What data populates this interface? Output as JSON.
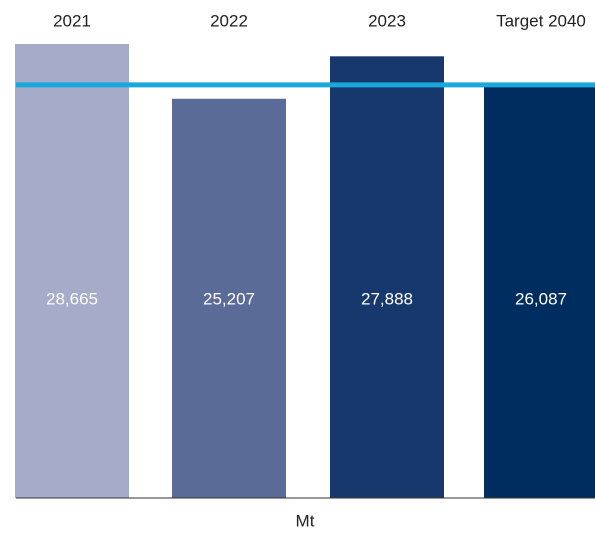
{
  "chart_data": {
    "type": "bar",
    "categories": [
      "2021",
      "2022",
      "2023",
      "Target 2040"
    ],
    "values": [
      28665,
      25207,
      27888,
      26087
    ],
    "value_labels": [
      "28,665",
      "25,207",
      "27,888",
      "26,087"
    ],
    "colors": [
      "#a5abc9",
      "#5b6b97",
      "#17386d",
      "#002d5f"
    ],
    "target_color": "#1aa7dc",
    "ylim": [
      0,
      28665
    ],
    "unit": "Mt"
  }
}
